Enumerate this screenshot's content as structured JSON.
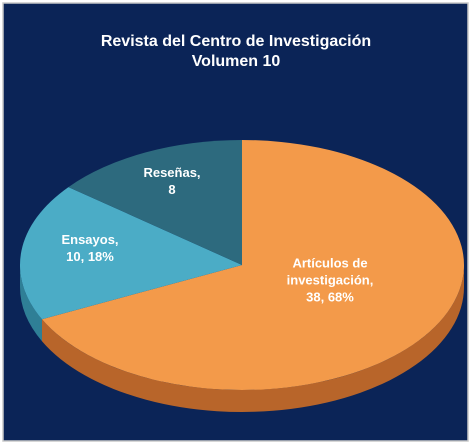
{
  "chart_data": {
    "type": "pie",
    "title": "Revista del Centro de Investigación",
    "subtitle": "Volumen 10",
    "categories": [
      "Artículos de investigación,",
      "Ensayos,",
      "Reseñas,"
    ],
    "values": [
      38,
      10,
      8
    ],
    "value_labels": [
      "38, 68%",
      "10, 18%",
      "8"
    ],
    "colors": [
      "#f39a4a",
      "#4bacc6",
      "#2d6a7e"
    ],
    "side_colors": [
      "#b8652a",
      "#2f7f96",
      "#1d4b5a"
    ],
    "three_d": true
  }
}
